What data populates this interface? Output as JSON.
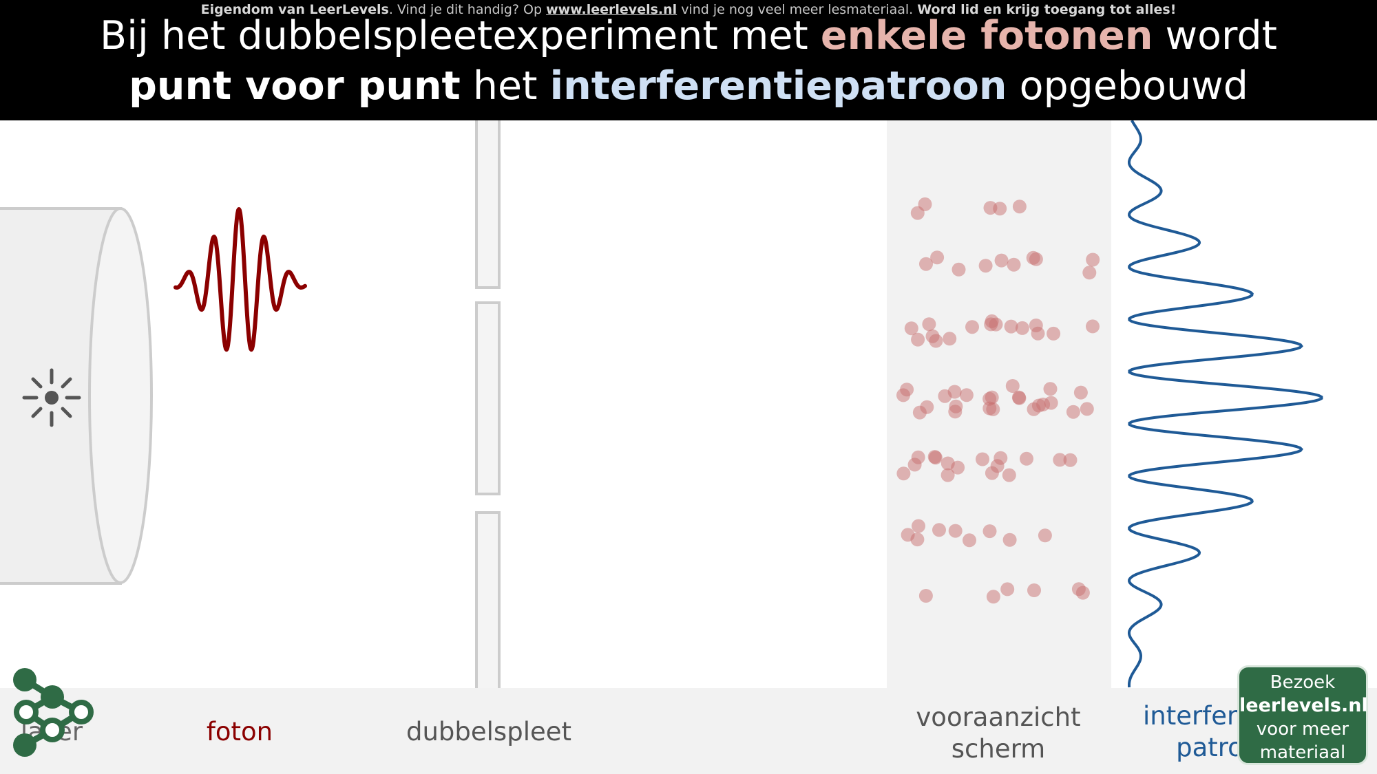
{
  "header": {
    "notice": {
      "part1": "Eigendom van LeerLevels",
      "part2": ". Vind je dit handig? Op ",
      "link": "www.leerlevels.nl",
      "part3": " vind je nog veel meer lesmateriaal. ",
      "part4": "Word lid en krijg toegang tot alles!"
    },
    "title_line1": {
      "pre": "Bij het dubbelspleetexperiment met ",
      "highlight": "enkele fotonen",
      "post": " wordt"
    },
    "title_line2": {
      "bold": "punt voor punt",
      "mid": " het ",
      "highlight": "interferentiepatroon",
      "post": " opgebouwd"
    }
  },
  "labels": {
    "laser": "laser",
    "photon": "foton",
    "double_slit": "dubbelspleet",
    "screen_line1": "vooraanzicht",
    "screen_line2": "scherm",
    "pattern_line1": "interferentie-",
    "pattern_line2": "patroon"
  },
  "badge": {
    "line1": "Bezoek",
    "line2": "leerlevels.nl",
    "line3": "voor meer",
    "line4": "materiaal"
  },
  "colors": {
    "photon": "#8b0000",
    "hit_dots": "#c87070",
    "pattern_curve": "#1f5a96",
    "logo_green": "#2f6b45"
  },
  "icons": {
    "light_source": "light-burst-icon",
    "logo": "leerlevels-logo-icon"
  }
}
